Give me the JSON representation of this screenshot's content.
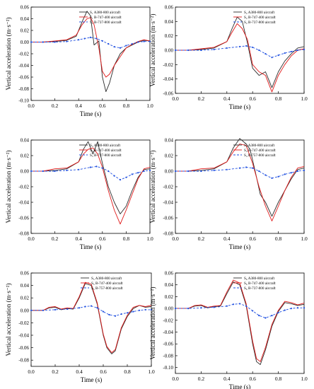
{
  "colors": {
    "A380": "#2b2b2b",
    "B747": "#e01818",
    "B737": "#1f4fe0",
    "axis": "#000000"
  },
  "chart_data": [
    {
      "type": "line",
      "xlabel": "Time (s)",
      "ylabel": "Vertical acceleration (m·s⁻²)",
      "xlim": [
        0.0,
        1.0
      ],
      "ylim": [
        -0.1,
        0.06
      ],
      "xticks": [
        "0.0",
        "0.2",
        "0.4",
        "0.6",
        "0.8",
        "1.0"
      ],
      "yticks": [
        "0.06",
        "0.04",
        "0.02",
        "0.00",
        "-0.02",
        "-0.04",
        "-0.06",
        "-0.08",
        "-0.10"
      ],
      "grid": false,
      "legend_position": "top-right",
      "series": [
        {
          "name": "S₁ A380-800 aircraft",
          "x": [
            0,
            0.1,
            0.2,
            0.3,
            0.38,
            0.43,
            0.47,
            0.5,
            0.53,
            0.57,
            0.6,
            0.63,
            0.66,
            0.7,
            0.75,
            0.8,
            0.85,
            0.9,
            0.95,
            1.0
          ],
          "y": [
            0,
            0,
            0.001,
            0.003,
            0.01,
            0.035,
            0.053,
            0.045,
            -0.005,
            0.002,
            -0.06,
            -0.085,
            -0.07,
            -0.04,
            -0.02,
            -0.01,
            -0.005,
            0,
            0.003,
            0.002
          ]
        },
        {
          "name": "S₁ B-747-400 aircraft",
          "x": [
            0,
            0.1,
            0.2,
            0.3,
            0.38,
            0.43,
            0.47,
            0.5,
            0.53,
            0.57,
            0.6,
            0.63,
            0.66,
            0.7,
            0.75,
            0.8,
            0.85,
            0.9,
            0.95,
            1.0
          ],
          "y": [
            0,
            0,
            0.002,
            0.004,
            0.012,
            0.03,
            0.04,
            0.042,
            0.03,
            -0.01,
            -0.05,
            -0.06,
            -0.055,
            -0.04,
            -0.025,
            -0.01,
            -0.004,
            0.001,
            0.004,
            0.002
          ]
        },
        {
          "name": "S₁ B-737-800 aircraft",
          "x": [
            0,
            0.1,
            0.2,
            0.3,
            0.4,
            0.45,
            0.5,
            0.55,
            0.6,
            0.65,
            0.7,
            0.75,
            0.8,
            0.85,
            0.9,
            0.95,
            1.0
          ],
          "y": [
            0,
            0,
            0,
            0.001,
            0.004,
            0.006,
            0.008,
            0.006,
            0.002,
            -0.003,
            -0.008,
            -0.01,
            -0.006,
            -0.003,
            0,
            0.001,
            0.001
          ]
        }
      ]
    },
    {
      "type": "line",
      "xlabel": "Time (s)",
      "ylabel": "Vertical acceleration (m·s⁻²)",
      "xlim": [
        0.0,
        1.0
      ],
      "ylim": [
        -0.06,
        0.06
      ],
      "xticks": [
        "0.0",
        "0.2",
        "0.4",
        "0.6",
        "0.8",
        "1.0"
      ],
      "yticks": [
        "0.06",
        "0.04",
        "0.02",
        "0.00",
        "-0.02",
        "-0.04",
        "-0.06"
      ],
      "grid": false,
      "legend_position": "top-right",
      "series": [
        {
          "name": "S₂ A380-800 aircraft",
          "x": [
            0,
            0.1,
            0.2,
            0.3,
            0.4,
            0.44,
            0.48,
            0.52,
            0.56,
            0.6,
            0.65,
            0.7,
            0.75,
            0.8,
            0.85,
            0.9,
            0.95,
            1.0
          ],
          "y": [
            0,
            0,
            0.001,
            0.003,
            0.012,
            0.03,
            0.046,
            0.04,
            0.01,
            -0.025,
            -0.035,
            -0.03,
            -0.052,
            -0.03,
            -0.015,
            -0.005,
            0.003,
            0.005
          ]
        },
        {
          "name": "S₂ B-747-400 aircraft",
          "x": [
            0,
            0.1,
            0.2,
            0.3,
            0.4,
            0.44,
            0.48,
            0.52,
            0.56,
            0.6,
            0.65,
            0.7,
            0.75,
            0.8,
            0.85,
            0.9,
            0.95,
            1.0
          ],
          "y": [
            0,
            0,
            0.002,
            0.004,
            0.012,
            0.025,
            0.037,
            0.03,
            0.015,
            -0.02,
            -0.03,
            -0.035,
            -0.058,
            -0.035,
            -0.02,
            -0.008,
            0,
            0.002
          ]
        },
        {
          "name": "S₂ B-737-800 aircraft",
          "x": [
            0,
            0.1,
            0.2,
            0.3,
            0.4,
            0.5,
            0.55,
            0.6,
            0.65,
            0.7,
            0.75,
            0.8,
            0.85,
            0.9,
            0.95,
            1.0
          ],
          "y": [
            0,
            0,
            0,
            0.001,
            0.003,
            0.005,
            0.006,
            0.004,
            0,
            -0.005,
            -0.01,
            -0.007,
            -0.004,
            -0.002,
            0,
            0.001
          ]
        }
      ]
    },
    {
      "type": "line",
      "xlabel": "Time (s)",
      "ylabel": "Vertical acceleration (m·s⁻²)",
      "xlim": [
        0.0,
        1.0
      ],
      "ylim": [
        -0.08,
        0.04
      ],
      "xticks": [
        "0.0",
        "0.2",
        "0.4",
        "0.6",
        "0.8",
        "1.0"
      ],
      "yticks": [
        "0.04",
        "0.02",
        "0.00",
        "-0.02",
        "-0.04",
        "-0.06",
        "-0.08"
      ],
      "grid": false,
      "legend_position": "top-right",
      "series": [
        {
          "name": "S₃ A380-800 aircraft",
          "x": [
            0,
            0.1,
            0.2,
            0.3,
            0.4,
            0.44,
            0.48,
            0.52,
            0.56,
            0.6,
            0.65,
            0.7,
            0.75,
            0.8,
            0.85,
            0.9,
            0.95,
            1.0
          ],
          "y": [
            0,
            0,
            0.001,
            0.003,
            0.012,
            0.028,
            0.038,
            0.022,
            0.038,
            0.01,
            -0.02,
            -0.04,
            -0.055,
            -0.045,
            -0.025,
            -0.008,
            0.002,
            0.003
          ]
        },
        {
          "name": "S₃ B-747-400 aircraft",
          "x": [
            0,
            0.1,
            0.2,
            0.3,
            0.4,
            0.44,
            0.48,
            0.52,
            0.56,
            0.6,
            0.65,
            0.7,
            0.75,
            0.8,
            0.85,
            0.9,
            0.95,
            1.0
          ],
          "y": [
            0,
            0,
            0.003,
            0.004,
            0.012,
            0.022,
            0.028,
            0.03,
            0.022,
            0.005,
            -0.025,
            -0.05,
            -0.068,
            -0.05,
            -0.03,
            -0.01,
            0.003,
            0.005
          ]
        },
        {
          "name": "S₃ B-737-800 aircraft",
          "x": [
            0,
            0.1,
            0.2,
            0.3,
            0.4,
            0.5,
            0.55,
            0.6,
            0.65,
            0.7,
            0.75,
            0.8,
            0.85,
            0.9,
            0.95,
            1.0
          ],
          "y": [
            0,
            0,
            0,
            0.001,
            0.002,
            0.005,
            0.006,
            0.004,
            0,
            -0.006,
            -0.011,
            -0.008,
            -0.004,
            -0.002,
            0,
            0.001
          ]
        }
      ]
    },
    {
      "type": "line",
      "xlabel": "Time (s)",
      "ylabel": "Vertical acceleration (m·s⁻²)",
      "xlim": [
        0.0,
        1.0
      ],
      "ylim": [
        -0.08,
        0.04
      ],
      "xticks": [
        "0.0",
        "0.2",
        "0.4",
        "0.6",
        "0.8",
        "1.0"
      ],
      "yticks": [
        "0.04",
        "0.02",
        "0.00",
        "-0.02",
        "-0.04",
        "-0.06",
        "-0.08"
      ],
      "grid": false,
      "legend_position": "top-right",
      "series": [
        {
          "name": "S₄ A380-800 aircraft",
          "x": [
            0,
            0.1,
            0.2,
            0.3,
            0.4,
            0.45,
            0.5,
            0.55,
            0.58,
            0.62,
            0.66,
            0.7,
            0.75,
            0.8,
            0.85,
            0.9,
            0.95,
            1.0
          ],
          "y": [
            0,
            0,
            0.001,
            0.003,
            0.012,
            0.03,
            0.042,
            0.035,
            0.028,
            0,
            -0.03,
            -0.04,
            -0.058,
            -0.04,
            -0.025,
            -0.01,
            0.002,
            0.004
          ]
        },
        {
          "name": "S₄ B-747-400 aircraft",
          "x": [
            0,
            0.1,
            0.2,
            0.3,
            0.4,
            0.45,
            0.5,
            0.55,
            0.6,
            0.65,
            0.7,
            0.75,
            0.8,
            0.85,
            0.9,
            0.95,
            1.0
          ],
          "y": [
            0,
            0,
            0.003,
            0.004,
            0.012,
            0.025,
            0.035,
            0.033,
            0.01,
            -0.02,
            -0.045,
            -0.064,
            -0.045,
            -0.025,
            -0.008,
            0.004,
            0.006
          ]
        },
        {
          "name": "S₄ B-757-800 aircraft",
          "x": [
            0,
            0.1,
            0.2,
            0.3,
            0.4,
            0.5,
            0.55,
            0.6,
            0.65,
            0.7,
            0.75,
            0.8,
            0.85,
            0.9,
            0.95,
            1.0
          ],
          "y": [
            0,
            0,
            0,
            0.001,
            0.002,
            0.004,
            0.005,
            0.004,
            0,
            -0.005,
            -0.009,
            -0.007,
            -0.004,
            -0.002,
            0,
            0.001
          ]
        }
      ]
    },
    {
      "type": "line",
      "xlabel": "Time (s)",
      "ylabel": "Vertical acceleration (m·s⁻²)",
      "xlim": [
        0.0,
        1.0
      ],
      "ylim": [
        -0.09,
        0.06
      ],
      "xticks": [
        "0.0",
        "0.2",
        "0.4",
        "0.6",
        "0.8",
        "1.0"
      ],
      "yticks": [
        "0.06",
        "0.04",
        "0.02",
        "0.00",
        "-0.02",
        "-0.04",
        "-0.06",
        "-0.08"
      ],
      "grid": false,
      "legend_position": "top-right",
      "series": [
        {
          "name": "S₅ A380-800 aircraft",
          "x": [
            0,
            0.1,
            0.15,
            0.2,
            0.25,
            0.3,
            0.35,
            0.4,
            0.45,
            0.5,
            0.55,
            0.6,
            0.63,
            0.67,
            0.7,
            0.75,
            0.8,
            0.85,
            0.9,
            0.95,
            1.0
          ],
          "y": [
            0,
            0,
            0.004,
            0.005,
            0.001,
            0.003,
            0.002,
            0.02,
            0.043,
            0.04,
            0.01,
            -0.04,
            -0.06,
            -0.07,
            -0.065,
            -0.03,
            -0.01,
            0.003,
            0.008,
            0.005,
            0.006
          ]
        },
        {
          "name": "S₅ B-747-400 aircraft",
          "x": [
            0,
            0.1,
            0.15,
            0.2,
            0.25,
            0.3,
            0.35,
            0.4,
            0.45,
            0.5,
            0.55,
            0.6,
            0.63,
            0.67,
            0.7,
            0.75,
            0.8,
            0.85,
            0.9,
            0.95,
            1.0
          ],
          "y": [
            0,
            0,
            0.005,
            0.006,
            0.002,
            0.004,
            0.003,
            0.022,
            0.045,
            0.042,
            0.012,
            -0.038,
            -0.058,
            -0.068,
            -0.063,
            -0.028,
            -0.008,
            0.005,
            0.008,
            0.006,
            0.008
          ]
        },
        {
          "name": "S₅ B-757-800 aircraft",
          "x": [
            0,
            0.1,
            0.2,
            0.3,
            0.4,
            0.45,
            0.5,
            0.55,
            0.6,
            0.65,
            0.7,
            0.75,
            0.8,
            0.85,
            0.9,
            0.95,
            1.0
          ],
          "y": [
            0,
            0,
            0.001,
            0.002,
            0.004,
            0.006,
            0.007,
            0.004,
            -0.002,
            -0.007,
            -0.009,
            -0.006,
            -0.004,
            -0.002,
            0,
            0.001,
            0.001
          ]
        }
      ]
    },
    {
      "type": "line",
      "xlabel": "Time (s)",
      "ylabel": "Vertical acceleration (m·s⁻²)",
      "xlim": [
        0.0,
        1.0
      ],
      "ylim": [
        -0.11,
        0.06
      ],
      "xticks": [
        "0.0",
        "0.2",
        "0.4",
        "0.6",
        "0.8",
        "1.0"
      ],
      "yticks": [
        "0.06",
        "0.04",
        "0.02",
        "0.00",
        "-0.02",
        "-0.04",
        "-0.06",
        "-0.08",
        "-0.10"
      ],
      "grid": false,
      "legend_position": "top-right",
      "series": [
        {
          "name": "S₆ A380-800 aircraft",
          "x": [
            0,
            0.1,
            0.15,
            0.2,
            0.25,
            0.3,
            0.35,
            0.4,
            0.45,
            0.5,
            0.55,
            0.6,
            0.63,
            0.66,
            0.7,
            0.75,
            0.8,
            0.85,
            0.9,
            0.95,
            1.0
          ],
          "y": [
            0,
            0,
            0.004,
            0.005,
            0.001,
            0.003,
            0.004,
            0.025,
            0.045,
            0.04,
            0.005,
            -0.06,
            -0.09,
            -0.095,
            -0.07,
            -0.03,
            -0.005,
            0.01,
            0.008,
            0.005,
            0.007
          ]
        },
        {
          "name": "S₆ B-747-400 aircraft",
          "x": [
            0,
            0.1,
            0.15,
            0.2,
            0.25,
            0.3,
            0.35,
            0.4,
            0.45,
            0.5,
            0.55,
            0.6,
            0.63,
            0.66,
            0.7,
            0.75,
            0.8,
            0.85,
            0.9,
            0.95,
            1.0
          ],
          "y": [
            0,
            0,
            0.005,
            0.006,
            0.002,
            0.004,
            0.005,
            0.028,
            0.048,
            0.043,
            0.008,
            -0.055,
            -0.085,
            -0.09,
            -0.066,
            -0.027,
            -0.003,
            0.012,
            0.01,
            0.006,
            0.009
          ]
        },
        {
          "name": "S₆ B-737-800 aircraft",
          "x": [
            0,
            0.1,
            0.2,
            0.3,
            0.4,
            0.45,
            0.5,
            0.55,
            0.6,
            0.65,
            0.7,
            0.75,
            0.8,
            0.85,
            0.9,
            0.95,
            1.0
          ],
          "y": [
            0,
            0,
            0.001,
            0.002,
            0.004,
            0.007,
            0.008,
            0.004,
            -0.004,
            -0.012,
            -0.016,
            -0.012,
            -0.007,
            -0.003,
            0,
            0.001,
            0.001
          ]
        }
      ]
    }
  ]
}
